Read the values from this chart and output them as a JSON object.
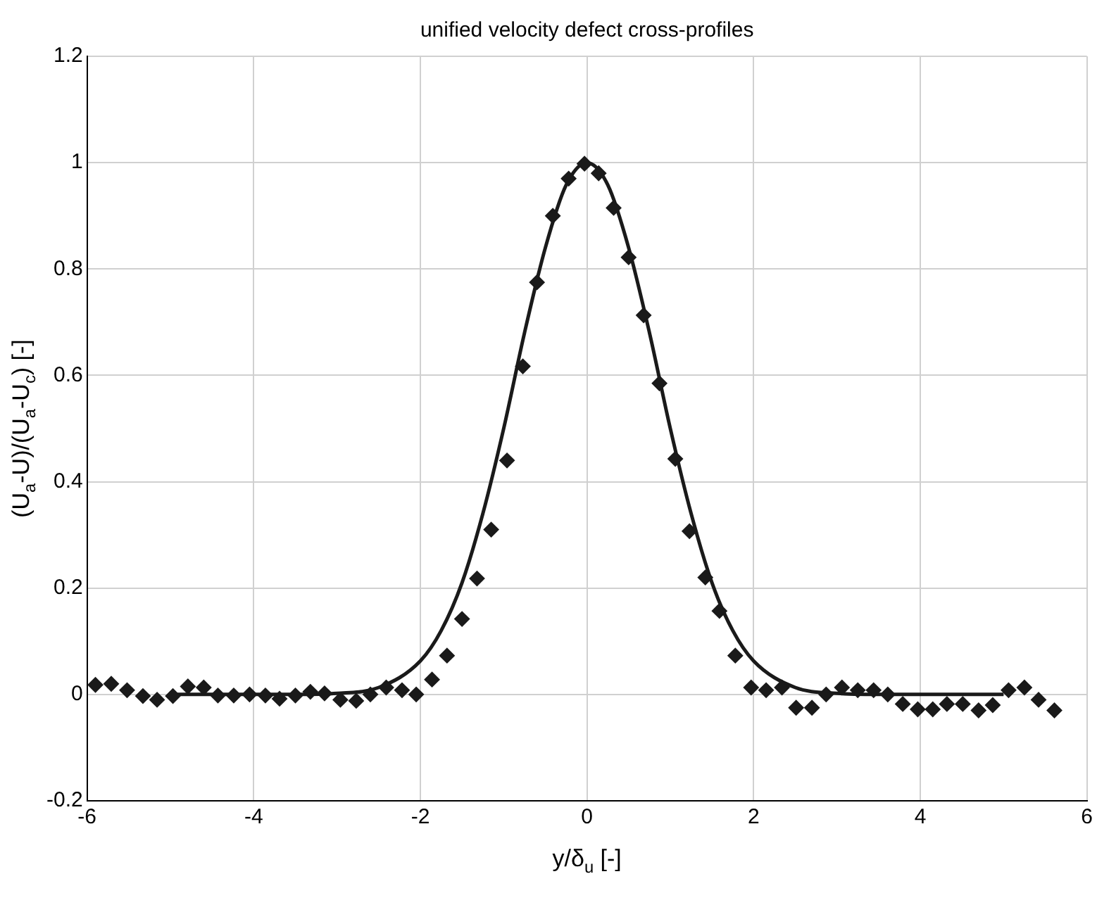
{
  "chart_data": {
    "type": "scatter",
    "title": "unified velocity defect cross-profiles",
    "xlabel": "y/δ$_{u}$ [-]",
    "ylabel": "(U$_{a}$-U)/(U$_{a}$-U$_{c}$) [-]",
    "xlim": [
      -6,
      6
    ],
    "xticks": [
      -6,
      -4,
      -2,
      0,
      2,
      4,
      6
    ],
    "ylim": [
      -0.2,
      1.2
    ],
    "yticks": [
      -0.2,
      0,
      0.2,
      0.4,
      0.6,
      0.8,
      1,
      1.2
    ],
    "grid": true,
    "legend": false,
    "series": [
      {
        "type": "scatter",
        "color": "#1a1a1a",
        "marker": "diamond",
        "x": [
          -5.9,
          -5.71,
          -5.52,
          -5.33,
          -5.16,
          -4.97,
          -4.79,
          -4.6,
          -4.43,
          -4.24,
          -4.05,
          -3.86,
          -3.69,
          -3.5,
          -3.32,
          -3.15,
          -2.96,
          -2.77,
          -2.6,
          -2.41,
          -2.22,
          -2.05,
          -1.86,
          -1.68,
          -1.5,
          -1.32,
          -1.15,
          -0.96,
          -0.77,
          -0.6,
          -0.41,
          -0.22,
          -0.03,
          0.14,
          0.32,
          0.5,
          0.68,
          0.87,
          1.06,
          1.23,
          1.42,
          1.59,
          1.78,
          1.97,
          2.15,
          2.34,
          2.51,
          2.7,
          2.87,
          3.06,
          3.25,
          3.44,
          3.61,
          3.79,
          3.97,
          4.15,
          4.32,
          4.51,
          4.7,
          4.87,
          5.06,
          5.25,
          5.42,
          5.61
        ],
        "values": [
          0.018,
          0.02,
          0.008,
          -0.003,
          -0.01,
          -0.003,
          0.015,
          0.013,
          -0.002,
          -0.002,
          0,
          -0.002,
          -0.008,
          -0.002,
          0.005,
          0.002,
          -0.01,
          -0.012,
          0,
          0.013,
          0.008,
          0,
          0.028,
          0.073,
          0.142,
          0.218,
          0.31,
          0.44,
          0.617,
          0.775,
          0.9,
          0.97,
          0.998,
          0.98,
          0.915,
          0.822,
          0.713,
          0.585,
          0.443,
          0.307,
          0.22,
          0.157,
          0.073,
          0.013,
          0.008,
          0.013,
          -0.025,
          -0.025,
          0,
          0.013,
          0.008,
          0.008,
          0,
          -0.018,
          -0.028,
          -0.028,
          -0.018,
          -0.018,
          -0.03,
          -0.02,
          0.008,
          0.013,
          -0.01,
          -0.03
        ]
      },
      {
        "type": "line",
        "color": "#1a1a1a",
        "marker": "none",
        "line_style": "solid",
        "x": [
          -5,
          -4,
          -3.5,
          -3,
          -2.5,
          -2,
          -1.75,
          -1.5,
          -1.25,
          -1,
          -0.75,
          -0.5,
          -0.25,
          0,
          0.25,
          0.5,
          0.75,
          1,
          1.25,
          1.5,
          1.75,
          2,
          2.5,
          3,
          3.5,
          4,
          5
        ],
        "values": [
          0,
          0,
          0,
          0.002,
          0.013,
          0.063,
          0.12,
          0.21,
          0.34,
          0.5,
          0.68,
          0.84,
          0.958,
          1,
          0.958,
          0.84,
          0.68,
          0.5,
          0.34,
          0.21,
          0.12,
          0.063,
          0.013,
          0.002,
          0,
          0,
          0
        ]
      }
    ]
  }
}
